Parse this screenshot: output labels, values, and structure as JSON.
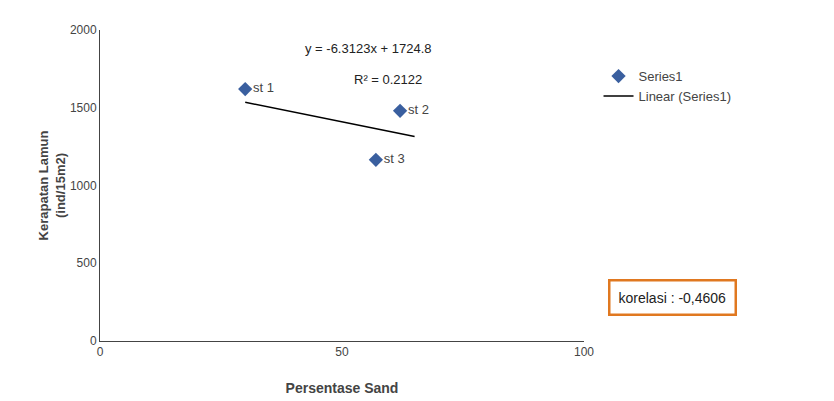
{
  "chart_data": {
    "type": "scatter",
    "xlabel": "Persentase Sand",
    "ylabel": "Kerapatan Lamun\n(ind/15m2)",
    "xlim": [
      0,
      100
    ],
    "ylim": [
      0,
      2000
    ],
    "xticks": [
      0,
      50,
      100
    ],
    "yticks": [
      0,
      500,
      1000,
      1500,
      2000
    ],
    "grid": false,
    "legend": "right",
    "series": [
      {
        "name": "Series1",
        "type": "scatter",
        "marker": "diamond",
        "color": "#3a5f9f",
        "x": [
          30,
          62,
          57
        ],
        "values": [
          1620,
          1480,
          1165
        ],
        "labels": [
          "st 1",
          "st 2",
          "st 3"
        ]
      },
      {
        "name": "Linear (Series1)",
        "type": "line",
        "line_style": "solid",
        "color": "#000000",
        "x": [
          30,
          65
        ],
        "values": [
          1535.431,
          1314.5005
        ]
      }
    ],
    "annotations": [
      {
        "text": "y = -6.3123x + 1724.8"
      },
      {
        "text": "R² = 0.2122"
      },
      {
        "text": "korelasi : -0,4606",
        "color": "#e07820"
      }
    ]
  }
}
